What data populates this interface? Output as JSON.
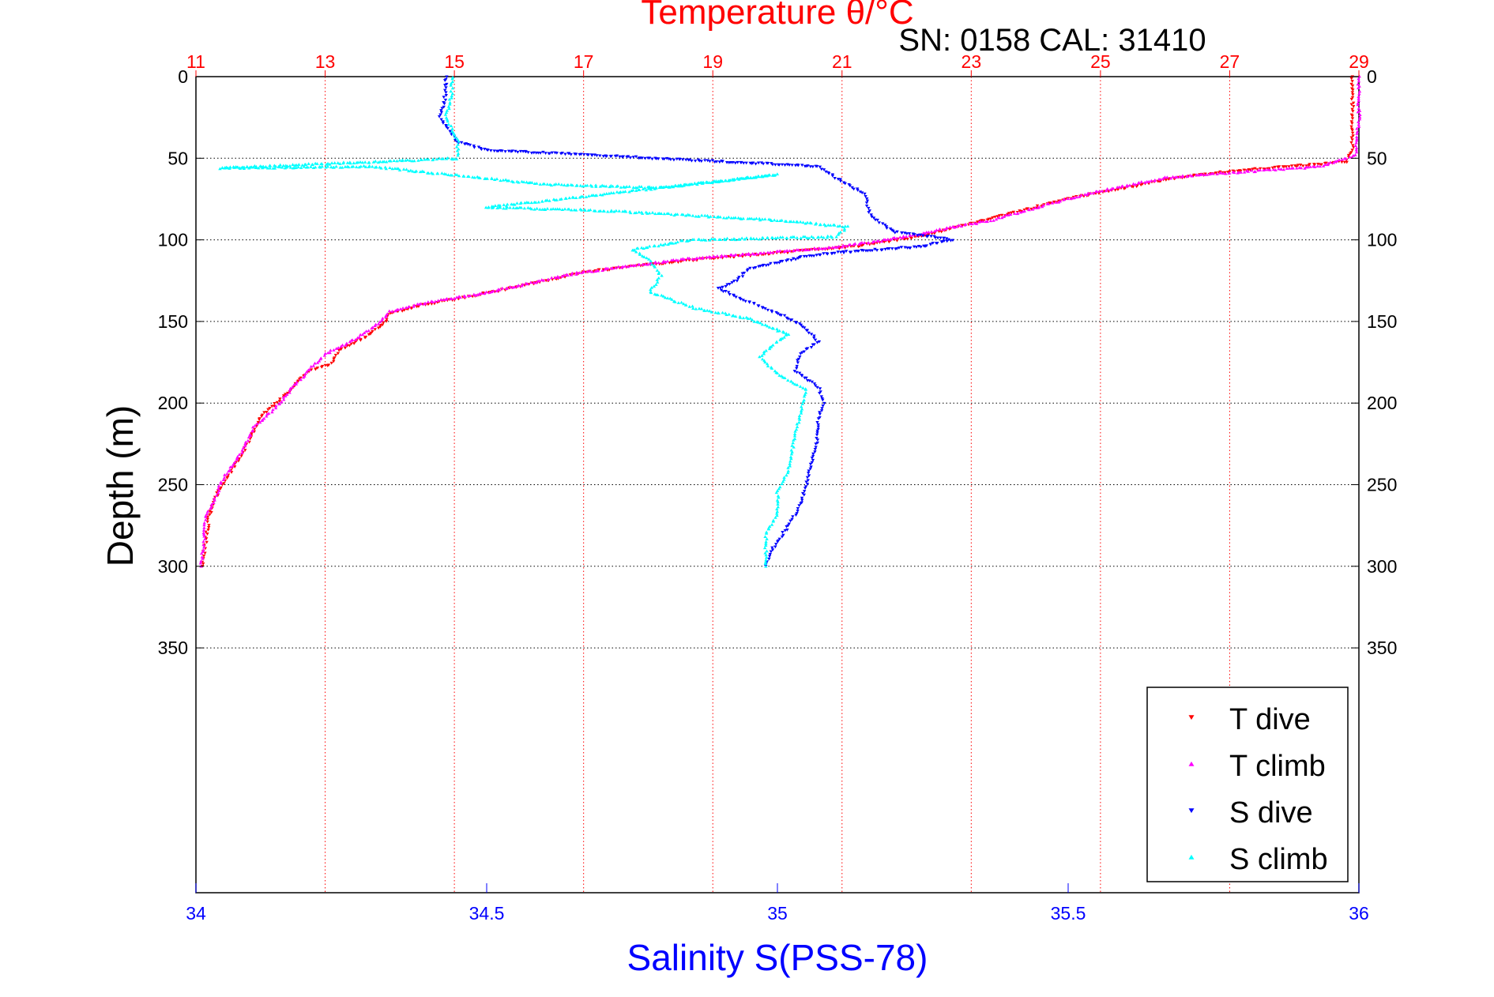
{
  "chart_data": {
    "type": "scatter",
    "title": "Temperature θ/°C",
    "subtitle": "SN: 0158  CAL: 31410",
    "ylabel": "Depth (m)",
    "xlabel_bottom": "Salinity S(PSS-78)",
    "y_axis": {
      "range": [
        0,
        500
      ],
      "reversed": true,
      "ticks": [
        "0",
        "50",
        "100",
        "150",
        "200",
        "250",
        "300",
        "350"
      ],
      "tick_values": [
        0,
        50,
        100,
        150,
        200,
        250,
        300,
        350
      ]
    },
    "x_top": {
      "label": "Temperature θ/°C",
      "range": [
        11,
        29
      ],
      "ticks": [
        "11",
        "13",
        "15",
        "17",
        "19",
        "21",
        "23",
        "25",
        "27",
        "29"
      ],
      "tick_values": [
        11,
        13,
        15,
        17,
        19,
        21,
        23,
        25,
        27,
        29
      ],
      "grid": "dotted",
      "color": "#ff0000"
    },
    "x_bottom": {
      "label": "Salinity S(PSS-78)",
      "range": [
        34,
        36
      ],
      "ticks": [
        "34",
        "34.5",
        "35",
        "35.5",
        "36"
      ],
      "tick_values": [
        34,
        34.5,
        35,
        35.5,
        36
      ],
      "color": "#0000ff"
    },
    "legend": {
      "placement": "bottom-right"
    },
    "series": [
      {
        "name": "T dive",
        "color": "#ff0000",
        "marker": "triangle-down",
        "axis": "top",
        "points": [
          [
            28.9,
            0
          ],
          [
            28.9,
            20
          ],
          [
            28.9,
            45
          ],
          [
            28.8,
            52
          ],
          [
            28.0,
            55
          ],
          [
            27.0,
            58
          ],
          [
            26.2,
            62
          ],
          [
            25.4,
            68
          ],
          [
            24.6,
            74
          ],
          [
            24.0,
            80
          ],
          [
            23.2,
            88
          ],
          [
            22.7,
            93
          ],
          [
            22.2,
            98
          ],
          [
            21.2,
            104
          ],
          [
            20.0,
            108
          ],
          [
            18.8,
            112
          ],
          [
            17.8,
            116
          ],
          [
            17.0,
            120
          ],
          [
            16.3,
            126
          ],
          [
            15.7,
            131
          ],
          [
            15.2,
            135
          ],
          [
            14.5,
            140
          ],
          [
            14.0,
            145
          ],
          [
            13.9,
            152
          ],
          [
            13.6,
            160
          ],
          [
            13.2,
            168
          ],
          [
            13.1,
            176
          ],
          [
            12.8,
            180
          ],
          [
            12.6,
            185
          ],
          [
            12.4,
            195
          ],
          [
            12.0,
            208
          ],
          [
            11.8,
            225
          ],
          [
            11.5,
            245
          ],
          [
            11.3,
            258
          ],
          [
            11.2,
            270
          ],
          [
            11.15,
            285
          ],
          [
            11.1,
            300
          ]
        ]
      },
      {
        "name": "T climb",
        "color": "#ff00ff",
        "marker": "triangle-up",
        "axis": "top",
        "points": [
          [
            29.0,
            0
          ],
          [
            29.0,
            25
          ],
          [
            28.95,
            48
          ],
          [
            28.4,
            55
          ],
          [
            27.3,
            58
          ],
          [
            26.0,
            62
          ],
          [
            25.0,
            70
          ],
          [
            24.2,
            78
          ],
          [
            23.3,
            88
          ],
          [
            22.6,
            93
          ],
          [
            22.0,
            98
          ],
          [
            21.0,
            104
          ],
          [
            19.8,
            108
          ],
          [
            18.5,
            112
          ],
          [
            17.5,
            117
          ],
          [
            16.8,
            121
          ],
          [
            16.0,
            128
          ],
          [
            15.4,
            133
          ],
          [
            14.6,
            138
          ],
          [
            14.0,
            144
          ],
          [
            13.8,
            152
          ],
          [
            13.5,
            160
          ],
          [
            13.0,
            170
          ],
          [
            12.8,
            178
          ],
          [
            12.5,
            190
          ],
          [
            12.3,
            200
          ],
          [
            11.9,
            215
          ],
          [
            11.7,
            230
          ],
          [
            11.4,
            248
          ],
          [
            11.3,
            258
          ],
          [
            11.15,
            270
          ],
          [
            11.12,
            285
          ],
          [
            11.08,
            300
          ]
        ]
      },
      {
        "name": "S dive",
        "color": "#0000ff",
        "marker": "triangle-down",
        "axis": "bottom",
        "points": [
          [
            34.43,
            0
          ],
          [
            34.43,
            10
          ],
          [
            34.42,
            25
          ],
          [
            34.45,
            40
          ],
          [
            34.5,
            45
          ],
          [
            35.07,
            55
          ],
          [
            35.1,
            62
          ],
          [
            35.15,
            72
          ],
          [
            35.16,
            85
          ],
          [
            35.2,
            95
          ],
          [
            35.3,
            100
          ],
          [
            35.25,
            104
          ],
          [
            35.1,
            108
          ],
          [
            35.05,
            110
          ],
          [
            34.95,
            118
          ],
          [
            34.93,
            125
          ],
          [
            34.9,
            130
          ],
          [
            34.95,
            138
          ],
          [
            35.0,
            145
          ],
          [
            35.03,
            150
          ],
          [
            35.05,
            155
          ],
          [
            35.07,
            162
          ],
          [
            35.04,
            170
          ],
          [
            35.03,
            180
          ],
          [
            35.07,
            190
          ],
          [
            35.08,
            200
          ],
          [
            35.07,
            210
          ],
          [
            35.07,
            220
          ],
          [
            35.06,
            235
          ],
          [
            35.05,
            250
          ],
          [
            35.04,
            262
          ],
          [
            35.02,
            275
          ],
          [
            34.99,
            290
          ],
          [
            34.98,
            300
          ]
        ]
      },
      {
        "name": "S climb",
        "color": "#00ffff",
        "marker": "triangle-up",
        "axis": "bottom",
        "points": [
          [
            34.44,
            0
          ],
          [
            34.44,
            10
          ],
          [
            34.43,
            25
          ],
          [
            34.45,
            40
          ],
          [
            34.45,
            50
          ],
          [
            34.04,
            56
          ],
          [
            34.3,
            55
          ],
          [
            34.6,
            66
          ],
          [
            34.8,
            68
          ],
          [
            35.0,
            60
          ],
          [
            34.5,
            80
          ],
          [
            34.7,
            82
          ],
          [
            35.0,
            88
          ],
          [
            35.12,
            92
          ],
          [
            35.1,
            98
          ],
          [
            34.85,
            100
          ],
          [
            34.75,
            106
          ],
          [
            34.78,
            112
          ],
          [
            34.8,
            122
          ],
          [
            34.78,
            132
          ],
          [
            34.86,
            142
          ],
          [
            34.95,
            148
          ],
          [
            35.02,
            158
          ],
          [
            35.0,
            162
          ],
          [
            34.97,
            172
          ],
          [
            35.0,
            182
          ],
          [
            35.05,
            192
          ],
          [
            35.04,
            205
          ],
          [
            35.03,
            220
          ],
          [
            35.02,
            240
          ],
          [
            35.0,
            255
          ],
          [
            35.0,
            268
          ],
          [
            34.98,
            280
          ],
          [
            34.98,
            292
          ],
          [
            34.98,
            300
          ]
        ]
      }
    ]
  }
}
